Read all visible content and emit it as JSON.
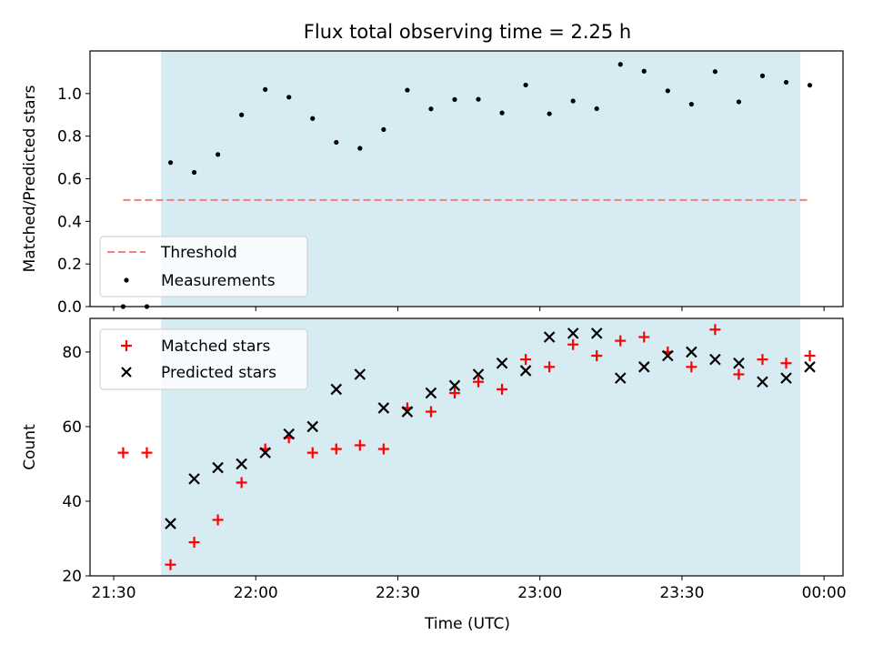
{
  "chart_data": {
    "title": "Flux total observing time = 2.25 h",
    "xlabel": "Time (UTC)",
    "x_tick_labels": [
      "21:30",
      "22:00",
      "22:30",
      "23:00",
      "23:30",
      "00:00"
    ],
    "x_tick_minutes": [
      0,
      30,
      60,
      90,
      120,
      150
    ],
    "x_range_minutes": [
      -5,
      154
    ],
    "x_origin": "21:30",
    "observing_window_minutes": [
      10,
      145
    ],
    "colors": {
      "window": "#add8e6",
      "threshold": "#f08080",
      "measurement": "#000000",
      "matched": "#ff0000",
      "predicted": "#000000"
    },
    "x_minutes": [
      2,
      7,
      12,
      17,
      22,
      27,
      32,
      37,
      42,
      47,
      52,
      57,
      62,
      67,
      72,
      77,
      82,
      87,
      92,
      97,
      102,
      107,
      112,
      117,
      122,
      127,
      132,
      137,
      142,
      147
    ],
    "charts": [
      {
        "type": "scatter",
        "ylabel": "Matched/Predicted stars",
        "ylim": [
          0,
          1.2
        ],
        "yticks": [
          0.0,
          0.2,
          0.4,
          0.6,
          0.8,
          1.0
        ],
        "threshold": {
          "value": 0.5,
          "x_start_minutes": 2,
          "x_end_minutes": 147
        },
        "legend": {
          "position": "lower-left",
          "entries": [
            "Threshold",
            "Measurements"
          ]
        },
        "series": [
          {
            "name": "Measurements",
            "marker": "dot",
            "values": [
              0.0,
              0.0,
              0.676,
              0.63,
              0.714,
              0.9,
              1.019,
              0.983,
              0.883,
              0.771,
              0.743,
              0.831,
              1.016,
              0.928,
              0.972,
              0.973,
              0.909,
              1.04,
              0.905,
              0.965,
              0.929,
              1.137,
              1.105,
              1.013,
              0.95,
              1.103,
              0.961,
              1.083,
              1.053,
              1.039
            ]
          }
        ]
      },
      {
        "type": "scatter",
        "ylabel": "Count",
        "ylim": [
          20,
          89
        ],
        "yticks": [
          20,
          40,
          60,
          80
        ],
        "legend": {
          "position": "upper-left",
          "entries": [
            "Matched stars",
            "Predicted stars"
          ]
        },
        "series": [
          {
            "name": "Matched stars",
            "marker": "plus",
            "values": [
              53,
              53,
              23,
              29,
              35,
              45,
              54,
              57,
              53,
              54,
              55,
              54,
              65,
              64,
              69,
              72,
              70,
              78,
              76,
              82,
              79,
              83,
              84,
              80,
              76,
              86,
              74,
              78,
              77,
              79
            ]
          },
          {
            "name": "Predicted stars",
            "marker": "x",
            "values": [
              null,
              null,
              34,
              46,
              49,
              50,
              53,
              58,
              60,
              70,
              74,
              65,
              64,
              69,
              71,
              74,
              77,
              75,
              84,
              85,
              85,
              73,
              76,
              79,
              80,
              78,
              77,
              72,
              73,
              76
            ]
          }
        ]
      }
    ]
  }
}
